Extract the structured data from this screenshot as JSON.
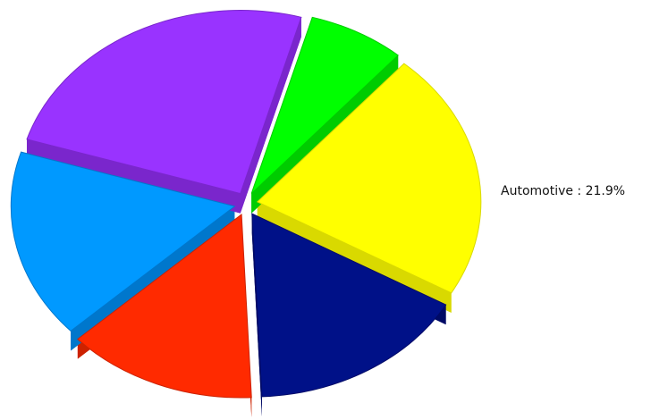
{
  "chart_data": {
    "type": "pie",
    "style": "3d-exploded",
    "slices": [
      {
        "label": "Automotive",
        "value": 21.9,
        "color": "#ffff00",
        "side_color": "#d9d900",
        "label_shown": true
      },
      {
        "label": "",
        "value": 16.0,
        "color": "#001188",
        "side_color": "#000a66",
        "label_shown": false
      },
      {
        "label": "",
        "value": 13.8,
        "color": "#ff2a00",
        "side_color": "#cc2200",
        "label_shown": false
      },
      {
        "label": "",
        "value": 16.7,
        "color": "#0099ff",
        "side_color": "#0077cc",
        "label_shown": false
      },
      {
        "label": "",
        "value": 24.6,
        "color": "#9933ff",
        "side_color": "#7a26cc",
        "label_shown": false
      },
      {
        "label": "",
        "value": 7.0,
        "color": "#00ff00",
        "side_color": "#00cc00",
        "label_shown": false
      }
    ]
  }
}
